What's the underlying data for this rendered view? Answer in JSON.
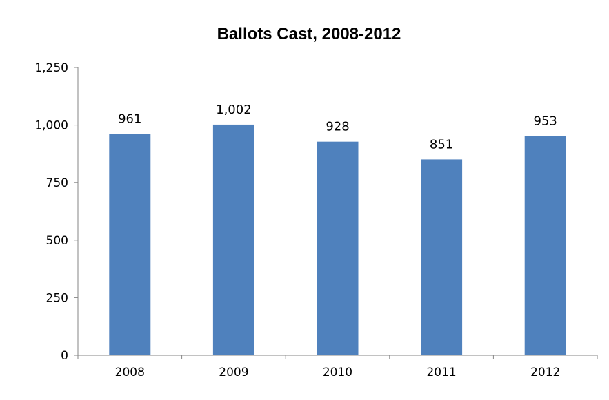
{
  "chart_data": {
    "type": "bar",
    "title": "Ballots Cast, 2008-2012",
    "categories": [
      "2008",
      "2009",
      "2010",
      "2011",
      "2012"
    ],
    "values": [
      961,
      1002,
      928,
      851,
      953
    ],
    "data_labels": [
      "961",
      "1,002",
      "928",
      "851",
      "953"
    ],
    "xlabel": "",
    "ylabel": "",
    "ylim": [
      0,
      1250
    ],
    "y_ticks": [
      0,
      250,
      500,
      750,
      1000,
      1250
    ],
    "y_tick_labels": [
      "0",
      "250",
      "500",
      "750",
      "1,000",
      "1,250"
    ],
    "grid": false,
    "legend": "none",
    "bar_color": "#4f81bd"
  }
}
